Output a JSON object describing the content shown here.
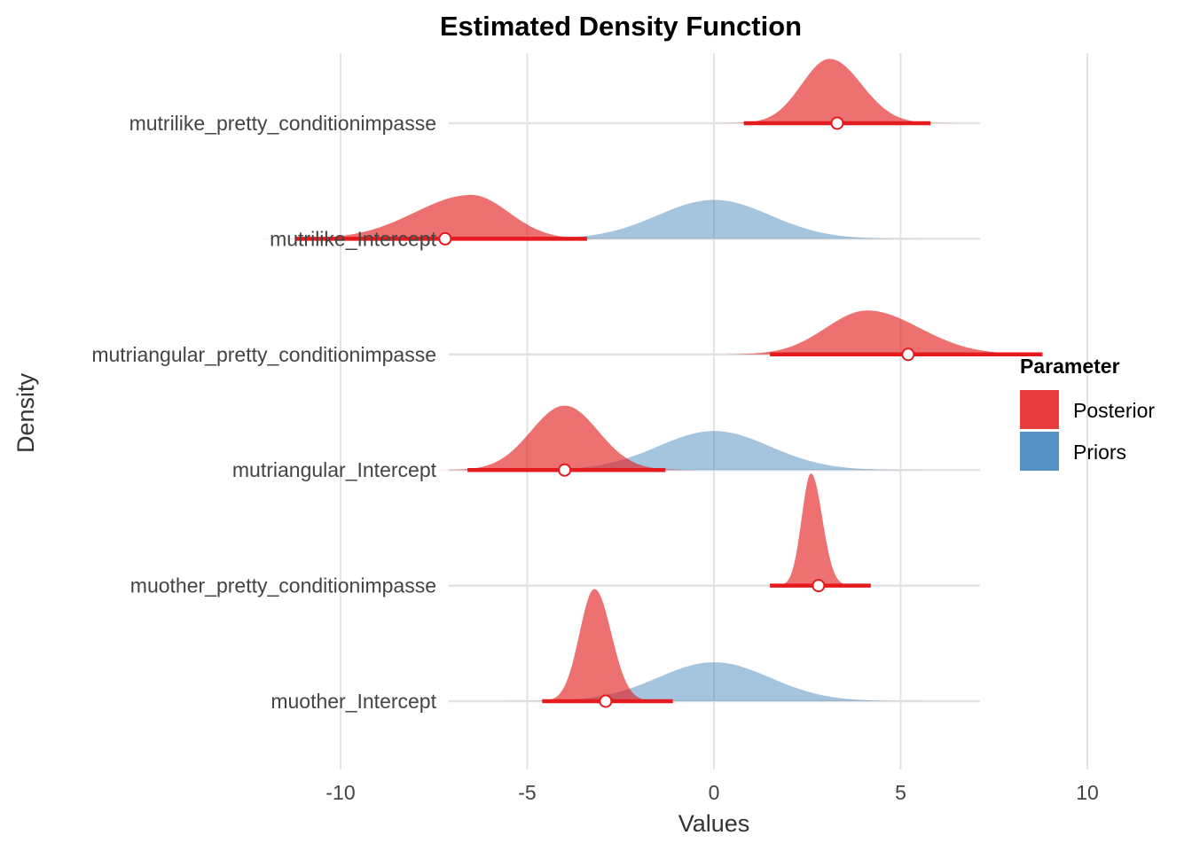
{
  "chart_data": {
    "type": "density",
    "title": "Estimated Density Function",
    "xlabel": "Values",
    "ylabel": "Density",
    "xlim": [
      -14.5,
      14
    ],
    "xticks": [
      -10,
      -5,
      0,
      5,
      10
    ],
    "grid": true,
    "legend": {
      "title": "Parameter",
      "placement": "right",
      "entries": [
        {
          "name": "Posterior",
          "color": "#E41A1C"
        },
        {
          "name": "Priors",
          "color": "#377EB8"
        }
      ]
    },
    "rows": [
      {
        "label": "mutrilike_pretty_conditionimpasse",
        "posterior": {
          "mode": 3.1,
          "sd_left": 0.75,
          "sd_right": 0.85,
          "point": 3.3,
          "interval": [
            0.8,
            5.8
          ]
        },
        "prior": null
      },
      {
        "label": "mutrilike_Intercept",
        "posterior": {
          "mode": -6.5,
          "sd_left": 1.5,
          "sd_right": 1.0,
          "point": -7.2,
          "interval": [
            -11.2,
            -3.4
          ]
        },
        "prior": {
          "mode": 0,
          "sd": 1.5
        }
      },
      {
        "label": "mutriangular_pretty_conditionimpasse",
        "posterior": {
          "mode": 4.1,
          "sd_left": 1.1,
          "sd_right": 1.4,
          "point": 5.2,
          "interval": [
            1.5,
            8.8
          ]
        },
        "prior": null
      },
      {
        "label": "mutriangular_Intercept",
        "posterior": {
          "mode": -4.0,
          "sd_left": 0.9,
          "sd_right": 0.9,
          "point": -4.0,
          "interval": [
            -6.6,
            -1.3
          ]
        },
        "prior": {
          "mode": 0,
          "sd": 1.5
        }
      },
      {
        "label": "muother_pretty_conditionimpasse",
        "posterior": {
          "mode": 2.6,
          "sd_left": 0.25,
          "sd_right": 0.3,
          "point": 2.8,
          "interval": [
            1.5,
            4.2
          ]
        },
        "prior": null
      },
      {
        "label": "muother_Intercept",
        "posterior": {
          "mode": -3.2,
          "sd_left": 0.4,
          "sd_right": 0.45,
          "point": -2.9,
          "interval": [
            -4.6,
            -1.1
          ]
        },
        "prior": {
          "mode": 0,
          "sd": 1.5
        }
      }
    ]
  }
}
